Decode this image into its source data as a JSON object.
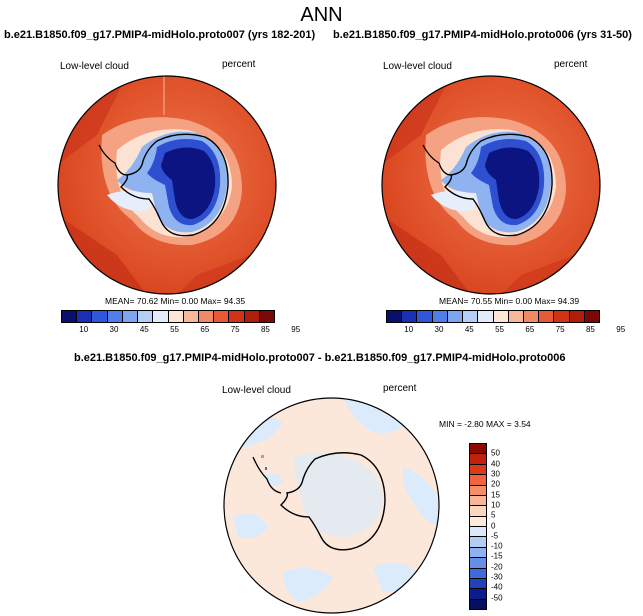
{
  "main_title": "ANN",
  "left_panel": {
    "title": "b.e21.B1850.f09_g17.PMIP4-midHolo.proto007 (yrs 182-201)",
    "variable": "Low-level cloud",
    "units": "percent",
    "stats": "MEAN= 70.62  Min=  0.00  Max= 94.35"
  },
  "right_panel": {
    "title": "b.e21.B1850.f09_g17.PMIP4-midHolo.proto006 (yrs 31-50)",
    "variable": "Low-level cloud",
    "units": "percent",
    "stats": "MEAN= 70.55  Min=  0.00  Max= 94.39"
  },
  "diff_panel": {
    "title": "b.e21.B1850.f09_g17.PMIP4-midHolo.proto007 - b.e21.B1850.f09_g17.PMIP4-midHolo.proto006",
    "variable": "Low-level cloud",
    "units": "percent",
    "stats": "MIN = -2.80 MAX =  3.54"
  },
  "colorbar_top": {
    "ticks": [
      "10",
      "30",
      "45",
      "55",
      "65",
      "75",
      "85",
      "95"
    ],
    "colors": [
      "#08106b",
      "#1a2fb4",
      "#2f57d9",
      "#4f7fe8",
      "#7ea5f2",
      "#b4cef8",
      "#e2ebfb",
      "#fde6d6",
      "#f8b799",
      "#f08a64",
      "#e55b37",
      "#cf3415",
      "#b01e0a",
      "#7a0906"
    ]
  },
  "colorbar_diff": {
    "ticks": [
      "50",
      "40",
      "30",
      "20",
      "15",
      "10",
      "5",
      "0",
      "-5",
      "-10",
      "-15",
      "-20",
      "-30",
      "-40",
      "-50"
    ],
    "colors": [
      "#8c0a06",
      "#c0210b",
      "#de3a17",
      "#ee6440",
      "#f48d68",
      "#f9b597",
      "#fcd5bf",
      "#fdeadc",
      "#dbe9fb",
      "#b5cdf6",
      "#8eb1f0",
      "#6690e8",
      "#4069db",
      "#2242b9",
      "#0c1c8a",
      "#060f60"
    ]
  }
}
